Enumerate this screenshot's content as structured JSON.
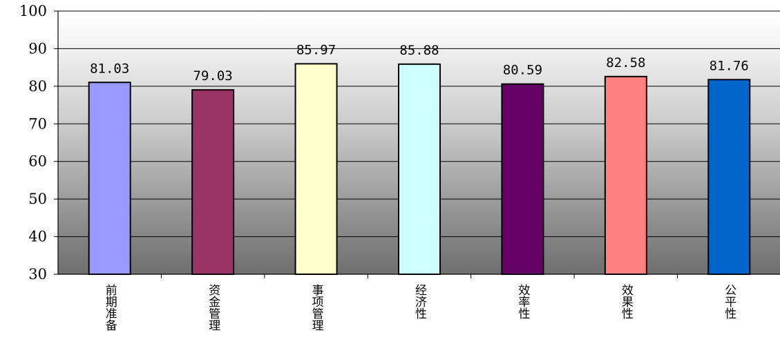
{
  "chart_data": {
    "type": "bar",
    "title": "",
    "xlabel": "",
    "ylabel": "",
    "ylim": [
      30,
      100
    ],
    "yticks": [
      30,
      40,
      50,
      60,
      70,
      80,
      90,
      100
    ],
    "grid": true,
    "categories": [
      "前期准备",
      "资金管理",
      "事项管理",
      "经济性",
      "效率性",
      "效果性",
      "公平性"
    ],
    "values": [
      81.03,
      79.03,
      85.97,
      85.88,
      80.59,
      82.58,
      81.76
    ],
    "data_labels": [
      "81.03",
      "79.03",
      "85.97",
      "85.88",
      "80.59",
      "82.58",
      "81.76"
    ],
    "colors": [
      "#9999ff",
      "#993366",
      "#ffffcc",
      "#ccffff",
      "#660066",
      "#ff8080",
      "#0066cc"
    ]
  }
}
